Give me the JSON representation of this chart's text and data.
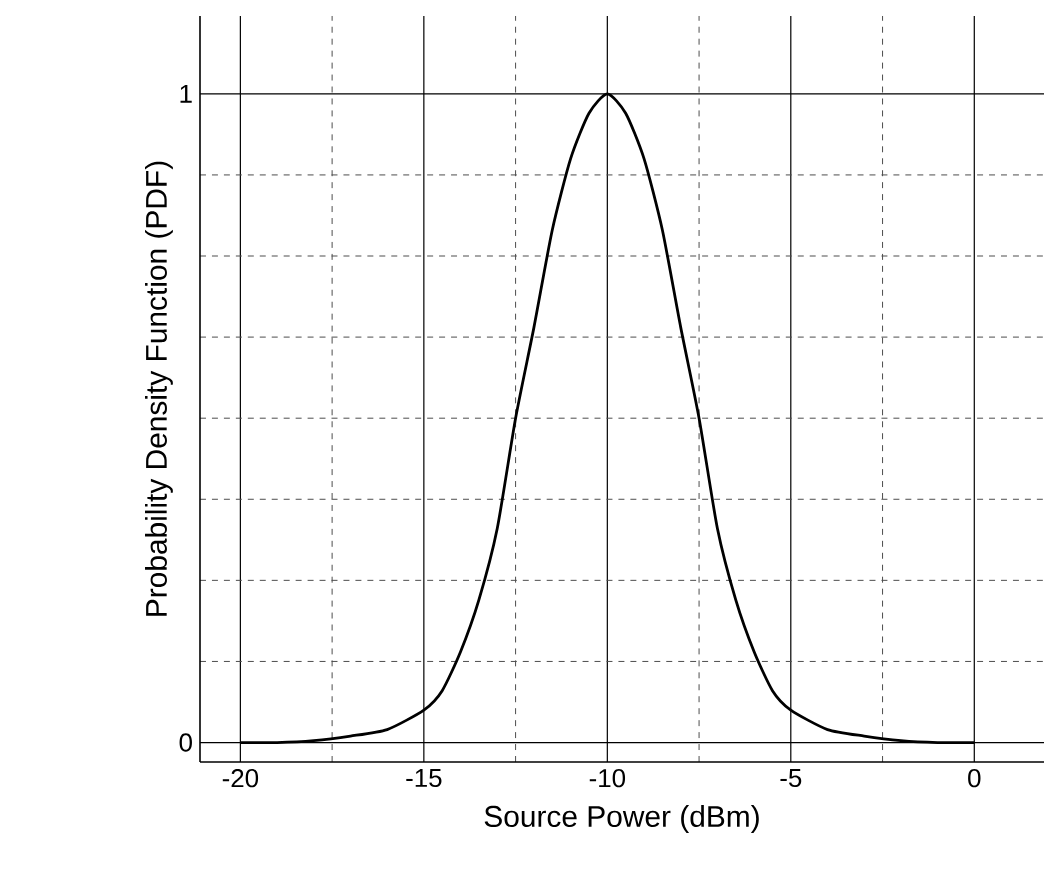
{
  "chart_data": {
    "type": "line",
    "xlabel": "Source Power (dBm)",
    "ylabel": "Probability Density Function (PDF)",
    "xlim": [
      -21.1,
      1.9
    ],
    "ylim": [
      -0.03,
      1.12
    ],
    "xticks": [
      -20,
      {
        "value": -17.5,
        "label": null
      },
      -15,
      {
        "value": -12.5,
        "label": null
      },
      -10,
      {
        "value": -7.5,
        "label": null
      },
      -5,
      {
        "value": -2.5,
        "label": null
      },
      0
    ],
    "yticks": [
      0,
      {
        "value": 0.125,
        "label": null
      },
      {
        "value": 0.25,
        "label": null
      },
      {
        "value": 0.375,
        "label": null
      },
      {
        "value": 0.5,
        "label": null
      },
      {
        "value": 0.625,
        "label": null
      },
      {
        "value": 0.75,
        "label": null
      },
      {
        "value": 0.875,
        "label": null
      },
      1
    ],
    "grid": true,
    "marker": "none",
    "line_style": "solid",
    "series": [
      {
        "color": "#000000",
        "x": [
          -20,
          -19,
          -18,
          -17,
          -16,
          -15,
          -14.5,
          -14,
          -13.5,
          -13,
          -12.5,
          -12,
          -11.5,
          -11,
          -10.5,
          -10,
          -9.5,
          -9,
          -8.5,
          -8,
          -7.5,
          -7,
          -6.5,
          -6,
          -5.5,
          -5,
          -4,
          -3,
          -2,
          -1,
          0
        ],
        "values": [
          0,
          0,
          0.003,
          0.01,
          0.02,
          0.05,
          0.08,
          0.14,
          0.22,
          0.33,
          0.5,
          0.64,
          0.79,
          0.9,
          0.97,
          1,
          0.97,
          0.9,
          0.79,
          0.64,
          0.5,
          0.33,
          0.22,
          0.14,
          0.08,
          0.05,
          0.02,
          0.01,
          0.003,
          0,
          0
        ]
      }
    ]
  }
}
